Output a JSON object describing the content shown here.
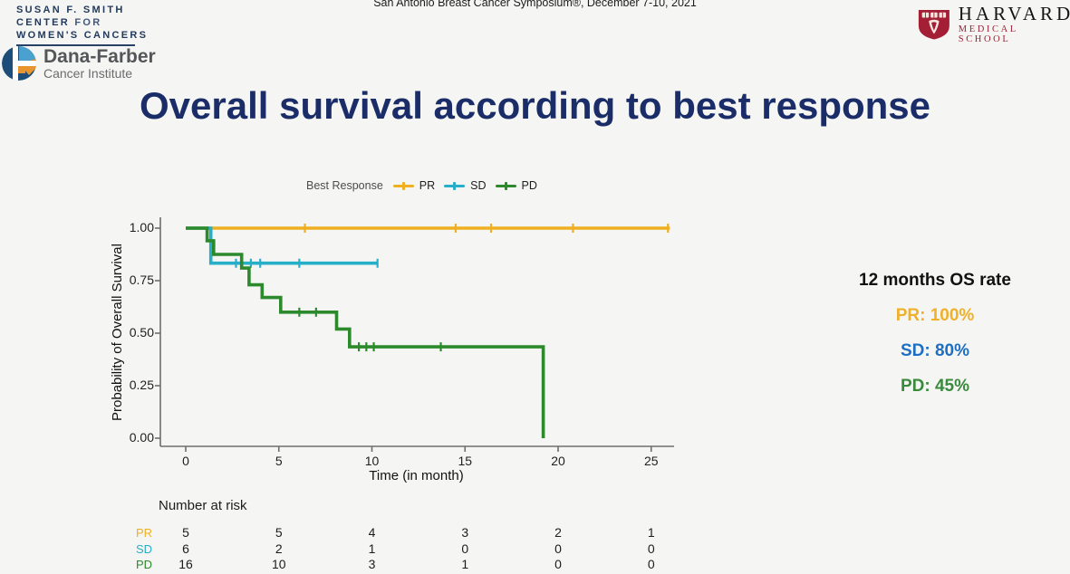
{
  "header": {
    "symposium": "San Antonio Breast Cancer Symposium®, December 7-10, 2021",
    "susan_smith": {
      "line1": "SUSAN F. SMITH",
      "line2_strong": "CENTER",
      "line2_light": "FOR",
      "line3": "WOMEN'S CANCERS"
    },
    "dana_farber": {
      "name": "Dana-Farber",
      "subtitle": "Cancer Institute"
    },
    "harvard": {
      "name": "HARVARD",
      "subtitle": "MEDICAL SCHOOL"
    }
  },
  "title": "Overall survival according to best response",
  "chart_data": {
    "type": "line",
    "subtype": "kaplan-meier-step",
    "legend_title": "Best Response",
    "xlabel": "Time (in month)",
    "ylabel": "Probability of Overall Survival",
    "xlim": [
      0,
      26.5
    ],
    "ylim": [
      0,
      1.0
    ],
    "x_ticks": [
      0,
      5,
      10,
      15,
      20,
      25
    ],
    "y_ticks": [
      1.0,
      0.75,
      0.5,
      0.25,
      0.0
    ],
    "grid": false,
    "legend_position": "top",
    "axis_color": "#6e6e6e",
    "series": [
      {
        "name": "PR",
        "color": "#EFAF20",
        "points": [
          [
            0,
            1.0
          ],
          [
            26,
            1.0
          ]
        ],
        "censors": [
          [
            6.4,
            1.0
          ],
          [
            14.5,
            1.0
          ],
          [
            16.4,
            1.0
          ],
          [
            20.8,
            1.0
          ],
          [
            25.9,
            1.0
          ]
        ]
      },
      {
        "name": "SD",
        "color": "#27AEC9",
        "points": [
          [
            0,
            1.0
          ],
          [
            1.35,
            1.0
          ],
          [
            1.35,
            0.833
          ],
          [
            10.3,
            0.833
          ]
        ],
        "censors": [
          [
            2.7,
            0.833
          ],
          [
            3.5,
            0.833
          ],
          [
            4.0,
            0.833
          ],
          [
            6.1,
            0.833
          ],
          [
            10.3,
            0.833
          ]
        ]
      },
      {
        "name": "PD",
        "color": "#2C8A2C",
        "points": [
          [
            0,
            1.0
          ],
          [
            1.15,
            1.0
          ],
          [
            1.15,
            0.94
          ],
          [
            1.5,
            0.94
          ],
          [
            1.5,
            0.875
          ],
          [
            3.0,
            0.875
          ],
          [
            3.0,
            0.81
          ],
          [
            3.4,
            0.81
          ],
          [
            3.4,
            0.73
          ],
          [
            4.1,
            0.73
          ],
          [
            4.1,
            0.67
          ],
          [
            5.1,
            0.67
          ],
          [
            5.1,
            0.6
          ],
          [
            8.1,
            0.6
          ],
          [
            8.1,
            0.52
          ],
          [
            8.8,
            0.52
          ],
          [
            8.8,
            0.435
          ],
          [
            19.2,
            0.435
          ],
          [
            19.2,
            0.0
          ]
        ],
        "censors": [
          [
            6.1,
            0.6
          ],
          [
            7.0,
            0.6
          ],
          [
            9.3,
            0.435
          ],
          [
            9.7,
            0.435
          ],
          [
            10.1,
            0.435
          ],
          [
            13.7,
            0.435
          ]
        ]
      }
    ],
    "number_at_risk": {
      "label": "Number at risk",
      "columns": [
        0,
        5,
        10,
        15,
        20,
        25
      ],
      "rows": [
        {
          "name": "PR",
          "color": "#EFAF20",
          "values": [
            5,
            5,
            4,
            3,
            2,
            1
          ]
        },
        {
          "name": "SD",
          "color": "#27AEC9",
          "values": [
            6,
            2,
            1,
            0,
            0,
            0
          ]
        },
        {
          "name": "PD",
          "color": "#2C8A2C",
          "values": [
            16,
            10,
            3,
            1,
            0,
            0
          ]
        }
      ]
    }
  },
  "annotation": {
    "title": "12 months OS rate",
    "items": [
      {
        "series": "PR",
        "label": "PR: 100%",
        "color": "#EFB02C"
      },
      {
        "series": "SD",
        "label": "SD: 80%",
        "color": "#1D6FC4"
      },
      {
        "series": "PD",
        "label": "PD: 45%",
        "color": "#3A8A3D"
      }
    ]
  }
}
